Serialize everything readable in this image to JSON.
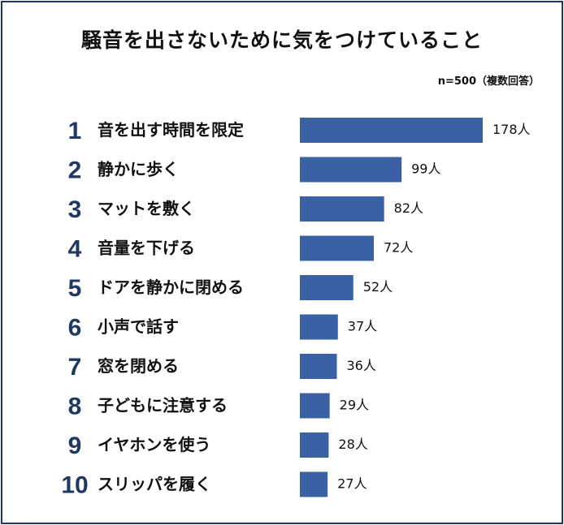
{
  "chart_data": {
    "type": "bar",
    "orientation": "horizontal",
    "title": "騒音を出さないために気をつけていること",
    "note": "n=500（複数回答）",
    "ranks": [
      "1",
      "2",
      "3",
      "4",
      "5",
      "6",
      "7",
      "8",
      "9",
      "10"
    ],
    "categories": [
      "音を出す時間を限定",
      "静かに歩く",
      "マットを敷く",
      "音量を下げる",
      "ドアを静かに閉める",
      "小声で話す",
      "窓を閉める",
      "子どもに注意する",
      "イヤホンを使う",
      "スリッパを履く"
    ],
    "values": [
      178,
      99,
      82,
      72,
      52,
      37,
      36,
      29,
      28,
      27
    ],
    "value_suffix": "人",
    "color": "#3a61a3",
    "rank_color": "#1f3864",
    "grid": false,
    "legend": "none"
  }
}
